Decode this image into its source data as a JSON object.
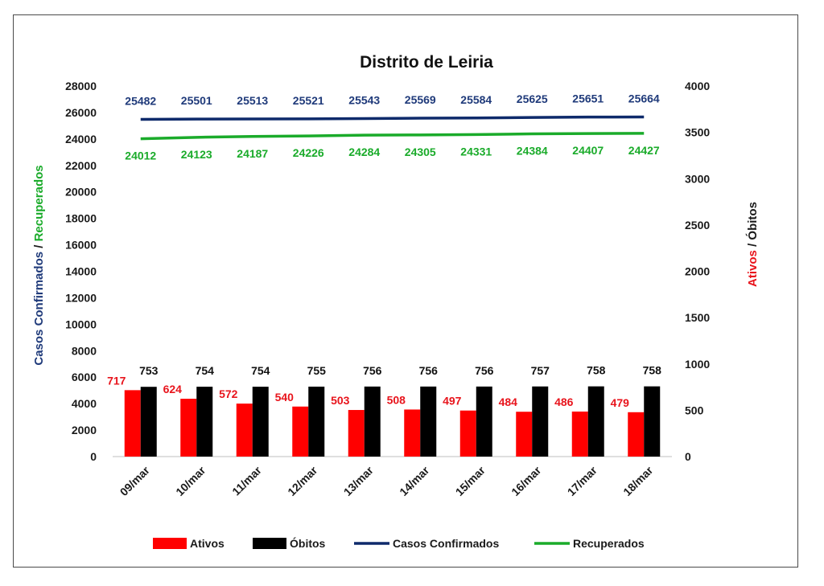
{
  "chart_data": {
    "type": "bar+line",
    "title": "Distrito de Leiria",
    "categories": [
      "09/mar",
      "10/mar",
      "11/mar",
      "12/mar",
      "13/mar",
      "14/mar",
      "15/mar",
      "16/mar",
      "17/mar",
      "18/mar"
    ],
    "left_axis": {
      "title_parts": [
        {
          "text": "Casos Confirmados",
          "color": "#1f3a7a"
        },
        {
          "text": " / ",
          "color": "#1a1a1a"
        },
        {
          "text": "Recuperados",
          "color": "#1aab2a"
        }
      ],
      "range": [
        0,
        28000
      ],
      "ticks": [
        0,
        2000,
        4000,
        6000,
        8000,
        10000,
        12000,
        14000,
        16000,
        18000,
        20000,
        22000,
        24000,
        26000,
        28000
      ]
    },
    "right_axis": {
      "title_parts": [
        {
          "text": "Ativos",
          "color": "#e8141c"
        },
        {
          "text": " / ",
          "color": "#1a1a1a"
        },
        {
          "text": "Óbitos",
          "color": "#1a1a1a"
        }
      ],
      "range": [
        0,
        4000
      ],
      "ticks": [
        0,
        500,
        1000,
        1500,
        2000,
        2500,
        3000,
        3500,
        4000
      ]
    },
    "series": [
      {
        "name": "Ativos",
        "kind": "bar",
        "axis": "right",
        "color": "#ff0000",
        "label_color": "#e8141c",
        "values": [
          717,
          624,
          572,
          540,
          503,
          508,
          497,
          484,
          486,
          479
        ]
      },
      {
        "name": "Óbitos",
        "kind": "bar",
        "axis": "right",
        "color": "#000000",
        "label_color": "#111111",
        "values": [
          753,
          754,
          754,
          755,
          756,
          756,
          756,
          757,
          758,
          758
        ]
      },
      {
        "name": "Casos Confirmados",
        "kind": "line",
        "axis": "left",
        "color": "#0e2a6b",
        "label_color": "#1f3a7a",
        "values": [
          25482,
          25501,
          25513,
          25521,
          25543,
          25569,
          25584,
          25625,
          25651,
          25664
        ]
      },
      {
        "name": "Recuperados",
        "kind": "line",
        "axis": "left",
        "color": "#1aab2a",
        "label_color": "#1aab2a",
        "values": [
          24012,
          24123,
          24187,
          24226,
          24284,
          24305,
          24331,
          24384,
          24407,
          24427
        ]
      }
    ],
    "legend": "bottom",
    "grid": false
  }
}
